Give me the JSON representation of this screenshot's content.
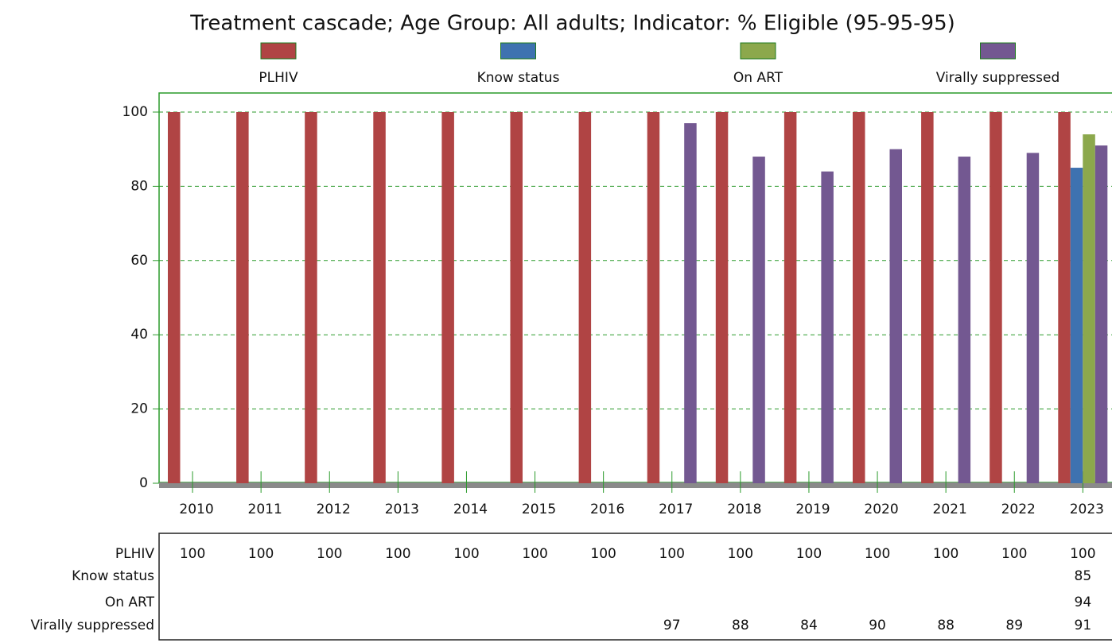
{
  "chart_data": {
    "type": "bar",
    "title": "Treatment cascade; Age Group: All adults; Indicator: % Eligible (95-95-95)",
    "categories": [
      "2010",
      "2011",
      "2012",
      "2013",
      "2014",
      "2015",
      "2016",
      "2017",
      "2018",
      "2019",
      "2020",
      "2021",
      "2022",
      "2023"
    ],
    "series": [
      {
        "name": "PLHIV",
        "color": "#b04444",
        "values": [
          100,
          100,
          100,
          100,
          100,
          100,
          100,
          100,
          100,
          100,
          100,
          100,
          100,
          100
        ]
      },
      {
        "name": "Know status",
        "color": "#3e72b0",
        "values": [
          null,
          null,
          null,
          null,
          null,
          null,
          null,
          null,
          null,
          null,
          null,
          null,
          null,
          85
        ]
      },
      {
        "name": "On ART",
        "color": "#8ca84c",
        "values": [
          null,
          null,
          null,
          null,
          null,
          null,
          null,
          null,
          null,
          null,
          null,
          null,
          null,
          94
        ]
      },
      {
        "name": "Virally suppressed",
        "color": "#735891",
        "values": [
          null,
          null,
          null,
          null,
          null,
          null,
          null,
          97,
          88,
          84,
          90,
          88,
          89,
          91
        ]
      }
    ],
    "ylim": [
      0,
      100
    ],
    "yticks": [
      0,
      20,
      40,
      60,
      80,
      100
    ],
    "grid": true
  }
}
